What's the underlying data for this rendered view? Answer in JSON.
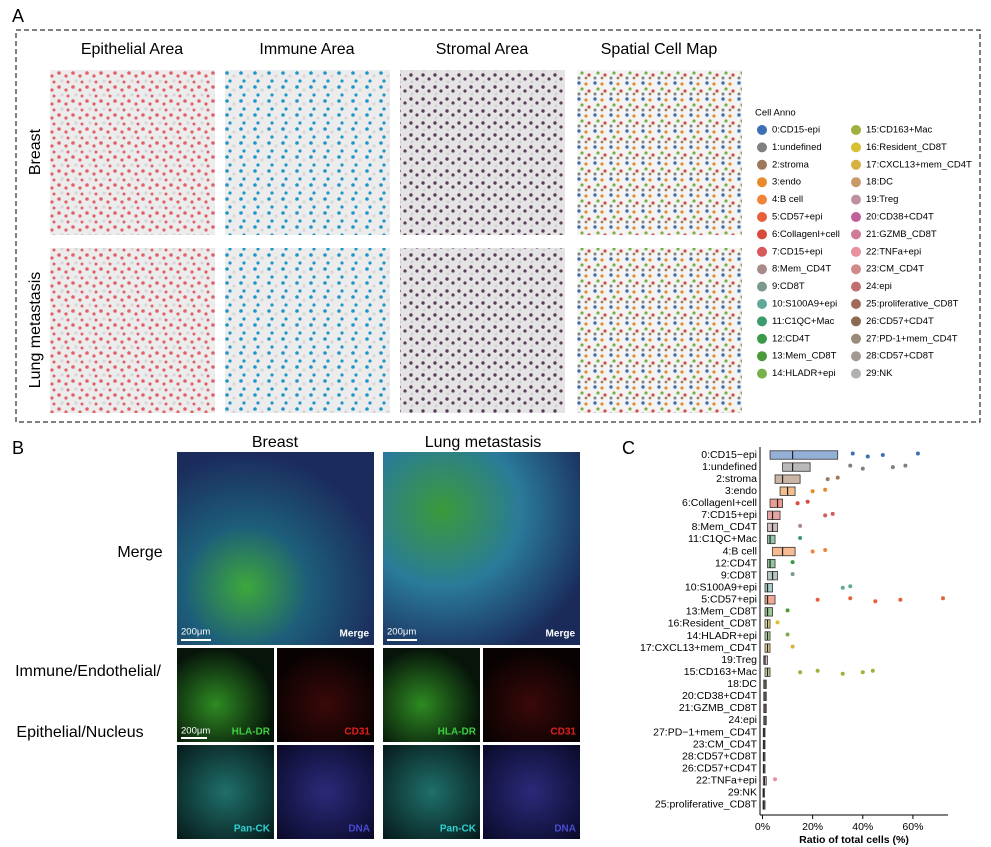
{
  "panel_a": {
    "label": "A",
    "columns": [
      "Epithelial Area",
      "Immune Area",
      "Stromal Area",
      "Spatial Cell Map"
    ],
    "rows": [
      "Breast",
      "Lung metastasis"
    ],
    "legend": {
      "title": "Cell Anno",
      "items": [
        {
          "label": "0:CD15-epi",
          "color": "#3d6fb6"
        },
        {
          "label": "1:undefined",
          "color": "#808080"
        },
        {
          "label": "2:stroma",
          "color": "#a0785a"
        },
        {
          "label": "3:endo",
          "color": "#e8892b"
        },
        {
          "label": "4:B cell",
          "color": "#f0843a"
        },
        {
          "label": "5:CD57+epi",
          "color": "#e8603c"
        },
        {
          "label": "6:CollagenI+cell",
          "color": "#d84a3a"
        },
        {
          "label": "7:CD15+epi",
          "color": "#d65a5a"
        },
        {
          "label": "8:Mem_CD4T",
          "color": "#a88a8a"
        },
        {
          "label": "9:CD8T",
          "color": "#7a9a8a"
        },
        {
          "label": "10:S100A9+epi",
          "color": "#5fa89a"
        },
        {
          "label": "11:C1QC+Mac",
          "color": "#3d9a6a"
        },
        {
          "label": "12:CD4T",
          "color": "#3a9a4a"
        },
        {
          "label": "13:Mem_CD8T",
          "color": "#4a9a3a"
        },
        {
          "label": "14:HLADR+epi",
          "color": "#7ab04a"
        },
        {
          "label": "15:CD163+Mac",
          "color": "#a0b03a"
        },
        {
          "label": "16:Resident_CD8T",
          "color": "#d8c030"
        },
        {
          "label": "17:CXCL13+mem_CD4T",
          "color": "#d8b040"
        },
        {
          "label": "18:DC",
          "color": "#c89a6a"
        },
        {
          "label": "19:Treg",
          "color": "#c090a0"
        },
        {
          "label": "20:CD38+CD4T",
          "color": "#c0609a"
        },
        {
          "label": "21:GZMB_CD8T",
          "color": "#d07a9a"
        },
        {
          "label": "22:TNFa+epi",
          "color": "#e890a0"
        },
        {
          "label": "23:CM_CD4T",
          "color": "#d08a8a"
        },
        {
          "label": "24:epi",
          "color": "#c07070"
        },
        {
          "label": "25:proliferative_CD8T",
          "color": "#a06a5a"
        },
        {
          "label": "26:CD57+CD4T",
          "color": "#8a6a50"
        },
        {
          "label": "27:PD-1+mem_CD4T",
          "color": "#9a8a7a"
        },
        {
          "label": "28:CD57+CD8T",
          "color": "#a09a90"
        },
        {
          "label": "29:NK",
          "color": "#b0b0b0"
        }
      ]
    }
  },
  "panel_b": {
    "label": "B",
    "columns": [
      "Breast",
      "Lung metastasis"
    ],
    "row_merge": "Merge",
    "row_channels": [
      "Immune/Endothelial/",
      "Epithelial/Nucleus"
    ],
    "tiles": [
      {
        "merge": "Merge",
        "scale_merge": "200μm",
        "scale_channel": "200μm",
        "channels": [
          "HLA-DR",
          "CD31",
          "Pan-CK",
          "DNA"
        ]
      },
      {
        "merge": "Merge",
        "scale_merge": "200μm",
        "channels": [
          "HLA-DR",
          "CD31",
          "Pan-CK",
          "DNA"
        ]
      }
    ]
  },
  "chart_data": {
    "type": "box",
    "label": "C",
    "categories": [
      "0:CD15−epi",
      "1:undefined",
      "2:stroma",
      "3:endo",
      "6:CollagenI+cell",
      "7:CD15+epi",
      "8:Mem_CD4T",
      "11:C1QC+Mac",
      "4:B cell",
      "12:CD4T",
      "9:CD8T",
      "10:S100A9+epi",
      "5:CD57+epi",
      "13:Mem_CD8T",
      "16:Resident_CD8T",
      "14:HLADR+epi",
      "17:CXCL13+mem_CD4T",
      "19:Treg",
      "15:CD163+Mac",
      "18:DC",
      "20:CD38+CD4T",
      "21:GZMB_CD8T",
      "24:epi",
      "27:PD−1+mem_CD4T",
      "23:CM_CD4T",
      "28:CD57+CD8T",
      "26:CD57+CD4T",
      "22:TNFa+epi",
      "29:NK",
      "25:proliferative_CD8T"
    ],
    "colors": [
      "#3d6fb6",
      "#808080",
      "#a0785a",
      "#e8892b",
      "#d84a3a",
      "#d65a5a",
      "#a88a8a",
      "#3d9a6a",
      "#f0843a",
      "#3a9a4a",
      "#7a9a8a",
      "#5fa89a",
      "#e8603c",
      "#4a9a3a",
      "#d8c030",
      "#7ab04a",
      "#d8b040",
      "#c090a0",
      "#a0b03a",
      "#c89a6a",
      "#c0609a",
      "#d07a9a",
      "#c07070",
      "#9a8a7a",
      "#d08a8a",
      "#a09a90",
      "#8a6a50",
      "#e890a0",
      "#b0b0b0",
      "#a06a5a"
    ],
    "q1": [
      3,
      8,
      5,
      7,
      3,
      2,
      2,
      2,
      4,
      2,
      2,
      1,
      1,
      1,
      1,
      1,
      1,
      0.5,
      1,
      0.5,
      0.5,
      0.5,
      0.5,
      0.3,
      0.3,
      0.3,
      0.3,
      0.3,
      0.2,
      0.2
    ],
    "median": [
      12,
      12,
      8,
      10,
      6,
      4,
      4,
      3,
      8,
      3,
      4,
      2,
      2,
      2,
      2,
      2,
      2,
      1,
      2,
      1,
      1,
      1,
      1,
      0.6,
      0.6,
      0.5,
      0.5,
      0.8,
      0.4,
      0.5
    ],
    "q3": [
      30,
      19,
      15,
      13,
      8,
      7,
      6,
      5,
      13,
      5,
      6,
      4,
      5,
      4,
      3,
      3,
      3,
      2,
      3,
      1.5,
      1.5,
      1.5,
      1.5,
      1,
      1,
      1,
      1,
      1.5,
      0.8,
      1
    ],
    "points": [
      [
        62,
        48,
        42,
        36
      ],
      [
        57,
        52,
        40,
        35
      ],
      [
        30,
        26
      ],
      [
        25,
        20
      ],
      [
        18,
        14
      ],
      [
        28,
        25
      ],
      [
        15
      ],
      [
        15
      ],
      [
        25,
        20
      ],
      [
        12
      ],
      [
        12
      ],
      [
        35,
        32
      ],
      [
        72,
        55,
        45,
        35,
        22
      ],
      [
        10
      ],
      [
        6
      ],
      [
        10
      ],
      [
        12
      ],
      [],
      [
        44,
        40,
        32,
        22,
        15
      ],
      [],
      [],
      [],
      [],
      [],
      [],
      [],
      [],
      [
        5
      ],
      [],
      []
    ],
    "xlabel": "Ratio of total cells (%)",
    "xlim": [
      -1,
      74
    ],
    "xticks": [
      {
        "value": 0,
        "label": "0%"
      },
      {
        "value": 20,
        "label": "20%"
      },
      {
        "value": 40,
        "label": "40%"
      },
      {
        "value": 60,
        "label": "60%"
      }
    ]
  }
}
